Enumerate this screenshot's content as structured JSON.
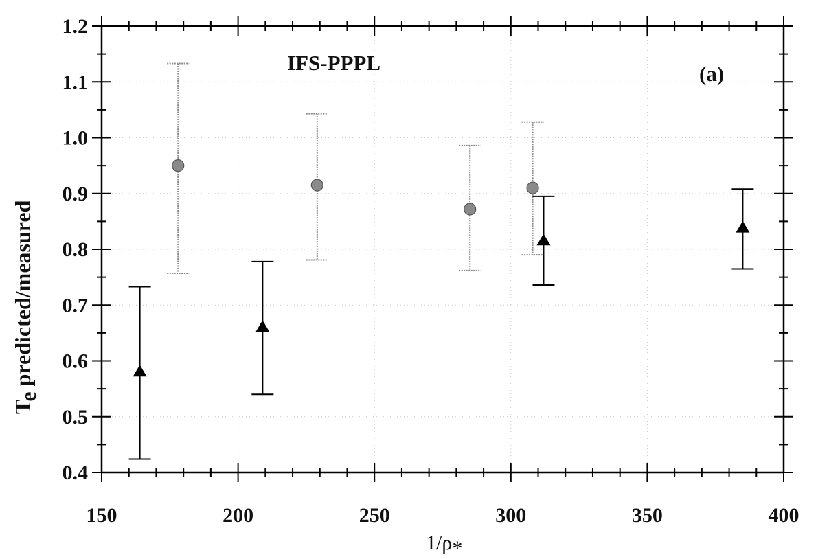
{
  "chart_data": {
    "type": "scatter",
    "title": "",
    "annotations": [
      "IFS-PPPL",
      "(a)"
    ],
    "xlabel": "1/ρ",
    "xlabel_subscript": "*",
    "ylabel_main": "T",
    "ylabel_subscript": "e",
    "ylabel_rest": " predicted/measured",
    "xlim": [
      150,
      400
    ],
    "ylim": [
      0.4,
      1.2
    ],
    "x_ticks": [
      "150",
      "200",
      "250",
      "300",
      "350",
      "400"
    ],
    "y_ticks": [
      "0.4",
      "0.5",
      "0.6",
      "0.7",
      "0.8",
      "0.9",
      "1.0",
      "1.1",
      "1.2"
    ],
    "grid": "dotted",
    "series": [
      {
        "marker": "circle",
        "color": "#8a8a8a",
        "error_color": "#8a8a8a",
        "points": [
          {
            "x": 178,
            "y": 0.95,
            "low": 0.757,
            "high": 1.133
          },
          {
            "x": 229,
            "y": 0.915,
            "low": 0.781,
            "high": 1.043
          },
          {
            "x": 285,
            "y": 0.872,
            "low": 0.762,
            "high": 0.986
          },
          {
            "x": 308,
            "y": 0.91,
            "low": 0.79,
            "high": 1.028
          }
        ]
      },
      {
        "marker": "triangle",
        "color": "#000000",
        "error_color": "#000000",
        "points": [
          {
            "x": 164,
            "y": 0.58,
            "low": 0.424,
            "high": 0.733
          },
          {
            "x": 209,
            "y": 0.66,
            "low": 0.54,
            "high": 0.778
          },
          {
            "x": 312,
            "y": 0.815,
            "low": 0.736,
            "high": 0.895
          },
          {
            "x": 385,
            "y": 0.838,
            "low": 0.765,
            "high": 0.908
          }
        ]
      }
    ]
  }
}
